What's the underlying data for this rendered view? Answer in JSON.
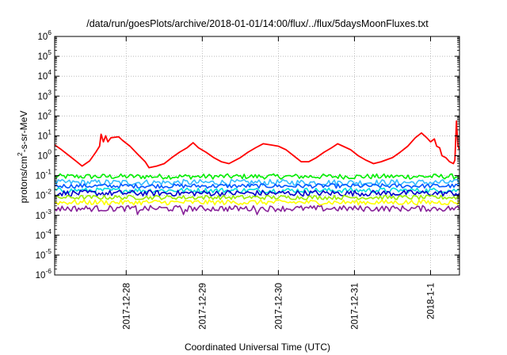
{
  "chart_data": {
    "type": "line",
    "title": "/data/run/goesPlots/archive/2018-01-01/14:00/flux/../flux/5daysMoonFluxes.txt",
    "xlabel": "Coordinated Universal Time (UTC)",
    "ylabel": "protons/cm²-s-sr-MeV",
    "ylabel_parts": [
      "protons/cm",
      "2",
      "-s-sr-MeV"
    ],
    "y_scale": "log",
    "ylim": [
      1e-06,
      1000000.0
    ],
    "y_ticks": [
      {
        "value": 1e-06,
        "base": "10",
        "exp": "-6"
      },
      {
        "value": 1e-05,
        "base": "10",
        "exp": "-5"
      },
      {
        "value": 0.0001,
        "base": "10",
        "exp": "-4"
      },
      {
        "value": 0.001,
        "base": "10",
        "exp": "-3"
      },
      {
        "value": 0.01,
        "base": "10",
        "exp": "-2"
      },
      {
        "value": 0.1,
        "base": "10",
        "exp": "-1"
      },
      {
        "value": 1,
        "base": "10",
        "exp": "0"
      },
      {
        "value": 10,
        "base": "10",
        "exp": "1"
      },
      {
        "value": 100,
        "base": "10",
        "exp": "2"
      },
      {
        "value": 1000,
        "base": "10",
        "exp": "3"
      },
      {
        "value": 10000,
        "base": "10",
        "exp": "4"
      },
      {
        "value": 100000,
        "base": "10",
        "exp": "5"
      },
      {
        "value": 1000000,
        "base": "10",
        "exp": "6"
      }
    ],
    "x_units": "days relative to 2017-12-28 00:00 UTC",
    "xlim": [
      -0.94,
      4.38
    ],
    "x_ticks": [
      {
        "value": 0,
        "label": "2017-12-28"
      },
      {
        "value": 1,
        "label": "2017-12-29"
      },
      {
        "value": 2,
        "label": "2017-12-30"
      },
      {
        "value": 3,
        "label": "2017-12-31"
      },
      {
        "value": 4,
        "label": "2018-1-1"
      }
    ],
    "grid": true,
    "series": [
      {
        "color": "#ff0000",
        "points": [
          [
            -0.94,
            3.5
          ],
          [
            -0.85,
            2.0
          ],
          [
            -0.75,
            1.0
          ],
          [
            -0.65,
            0.5
          ],
          [
            -0.58,
            0.3
          ],
          [
            -0.48,
            0.55
          ],
          [
            -0.4,
            1.5
          ],
          [
            -0.35,
            3.0
          ],
          [
            -0.33,
            12
          ],
          [
            -0.3,
            5
          ],
          [
            -0.27,
            10
          ],
          [
            -0.24,
            5
          ],
          [
            -0.2,
            8
          ],
          [
            -0.1,
            9
          ],
          [
            -0.05,
            6
          ],
          [
            0.05,
            3
          ],
          [
            0.15,
            1.2
          ],
          [
            0.25,
            0.5
          ],
          [
            0.3,
            0.25
          ],
          [
            0.4,
            0.3
          ],
          [
            0.5,
            0.4
          ],
          [
            0.6,
            0.8
          ],
          [
            0.7,
            1.5
          ],
          [
            0.8,
            2.5
          ],
          [
            0.88,
            4.5
          ],
          [
            0.95,
            2.5
          ],
          [
            1.05,
            1.5
          ],
          [
            1.15,
            0.8
          ],
          [
            1.25,
            0.5
          ],
          [
            1.35,
            0.4
          ],
          [
            1.5,
            0.8
          ],
          [
            1.6,
            1.5
          ],
          [
            1.7,
            2.5
          ],
          [
            1.8,
            4.0
          ],
          [
            1.9,
            3.5
          ],
          [
            2.0,
            3.0
          ],
          [
            2.1,
            2.0
          ],
          [
            2.2,
            1.0
          ],
          [
            2.3,
            0.5
          ],
          [
            2.4,
            0.5
          ],
          [
            2.5,
            0.8
          ],
          [
            2.6,
            1.5
          ],
          [
            2.7,
            2.5
          ],
          [
            2.78,
            4.0
          ],
          [
            2.85,
            3.0
          ],
          [
            2.95,
            2.0
          ],
          [
            3.05,
            1.0
          ],
          [
            3.15,
            0.6
          ],
          [
            3.25,
            0.4
          ],
          [
            3.35,
            0.5
          ],
          [
            3.5,
            0.8
          ],
          [
            3.6,
            1.5
          ],
          [
            3.7,
            3.0
          ],
          [
            3.8,
            8.0
          ],
          [
            3.88,
            14.0
          ],
          [
            3.95,
            8.0
          ],
          [
            4.0,
            5.0
          ],
          [
            4.05,
            7.0
          ],
          [
            4.08,
            3.0
          ],
          [
            4.12,
            2.5
          ],
          [
            4.15,
            1.0
          ],
          [
            4.2,
            0.8
          ],
          [
            4.25,
            0.5
          ],
          [
            4.3,
            0.4
          ],
          [
            4.32,
            0.6
          ],
          [
            4.34,
            55
          ],
          [
            4.36,
            3.0
          ],
          [
            4.38,
            2.0
          ]
        ]
      },
      {
        "color": "#00ee00",
        "level": 0.09
      },
      {
        "color": "#33bbff",
        "level": 0.045
      },
      {
        "color": "#0055ff",
        "level": 0.03
      },
      {
        "color": "#00dddd",
        "level": 0.018
      },
      {
        "color": "#0000cc",
        "level": 0.013
      },
      {
        "color": "#99ee00",
        "level": 0.008
      },
      {
        "color": "#ffff00",
        "level": 0.0045
      },
      {
        "color": "#882299",
        "level": 0.0022
      }
    ]
  }
}
